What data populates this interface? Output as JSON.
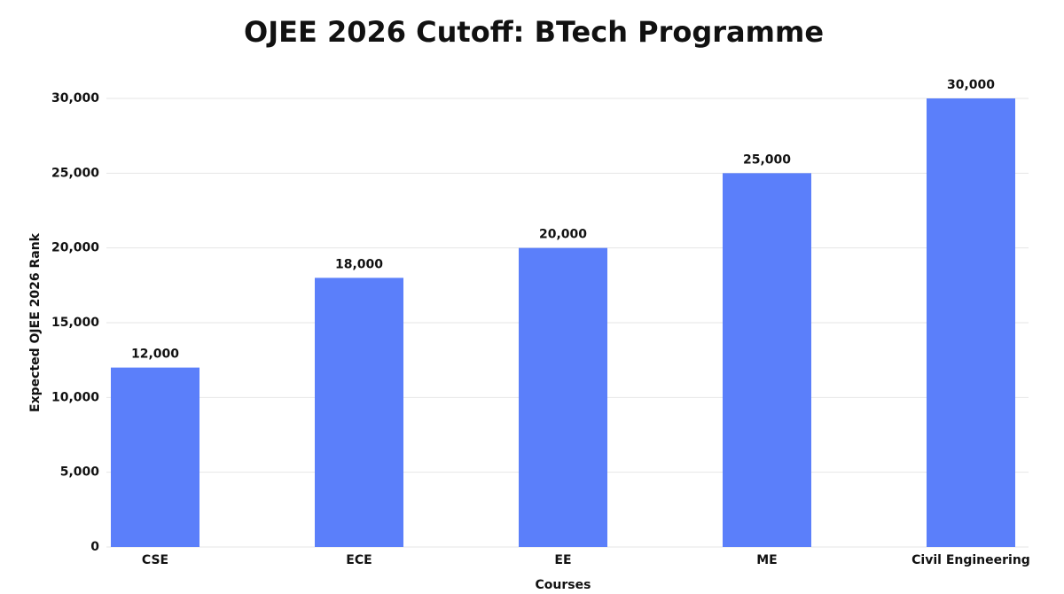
{
  "chart_data": {
    "type": "bar",
    "title": "OJEE 2026 Cutoff: BTech Programme",
    "x_label": "Courses",
    "y_label": "Expected OJEE 2026 Rank",
    "categories": [
      "CSE",
      "ECE",
      "EE",
      "ME",
      "Civil Engineering"
    ],
    "values": [
      12000,
      18000,
      20000,
      25000,
      30000
    ],
    "value_labels": [
      "12,000",
      "18,000",
      "20,000",
      "25,000",
      "30,000"
    ],
    "color": "#5b7ffa",
    "ylim": [
      0,
      30000
    ],
    "yticks": [
      0,
      {
        "value": 5000,
        "label": "5,000"
      },
      {
        "value": 10000,
        "label": "10,000"
      },
      {
        "value": 15000,
        "label": "15,000"
      },
      {
        "value": 20000,
        "label": "20,000"
      },
      {
        "value": 25000,
        "label": "25,000"
      },
      {
        "value": 30000,
        "label": "30,000"
      }
    ],
    "grid": true
  }
}
